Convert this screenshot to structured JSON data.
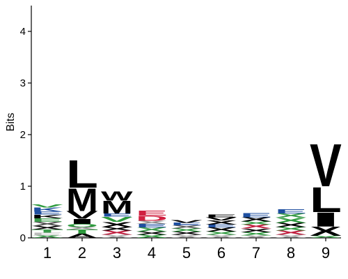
{
  "chart_data": {
    "type": "sequence-logo",
    "ylabel": "Bits",
    "ylim": [
      0,
      4.5
    ],
    "yticks": [
      0,
      1,
      2,
      3,
      4
    ],
    "positions": [
      {
        "label": "1",
        "letters": [
          {
            "char": "X",
            "bits": 0.05,
            "color": "#3a9a4a"
          },
          {
            "char": "E",
            "bits": 0.05,
            "color": "#bbbbbb"
          },
          {
            "char": "T",
            "bits": 0.06,
            "color": "#3a9a4a"
          },
          {
            "char": "X",
            "bits": 0.07,
            "color": "#000000"
          },
          {
            "char": "X",
            "bits": 0.08,
            "color": "#555555"
          },
          {
            "char": "E",
            "bits": 0.07,
            "color": "#3a9a4a"
          },
          {
            "char": "K",
            "bits": 0.07,
            "color": "#000000"
          },
          {
            "char": "E",
            "bits": 0.06,
            "color": "#1f4fa0"
          },
          {
            "char": "K",
            "bits": 0.08,
            "color": "#1f4fa0"
          },
          {
            "char": "V",
            "bits": 0.06,
            "color": "#2e9a3e"
          }
        ]
      },
      {
        "label": "2",
        "letters": [
          {
            "char": "A",
            "bits": 0.08,
            "color": "#000000"
          },
          {
            "char": "T",
            "bits": 0.08,
            "color": "#2e9a3e"
          },
          {
            "char": "X",
            "bits": 0.05,
            "color": "#888888"
          },
          {
            "char": "O",
            "bits": 0.06,
            "color": "#2e9a3e"
          },
          {
            "char": "I",
            "bits": 0.1,
            "color": "#000000"
          },
          {
            "char": "V",
            "bits": 0.15,
            "color": "#000000"
          },
          {
            "char": "M",
            "bits": 0.45,
            "color": "#000000"
          },
          {
            "char": "L",
            "bits": 0.55,
            "color": "#000000"
          }
        ]
      },
      {
        "label": "3",
        "letters": [
          {
            "char": "X",
            "bits": 0.06,
            "color": "#aaaaaa"
          },
          {
            "char": "X",
            "bits": 0.08,
            "color": "#c02040"
          },
          {
            "char": "X",
            "bits": 0.07,
            "color": "#000000"
          },
          {
            "char": "X",
            "bits": 0.1,
            "color": "#000000"
          },
          {
            "char": "V",
            "bits": 0.1,
            "color": "#2e9a3e"
          },
          {
            "char": "E",
            "bits": 0.06,
            "color": "#1f4fa0"
          },
          {
            "char": "M",
            "bits": 0.25,
            "color": "#000000"
          },
          {
            "char": "W",
            "bits": 0.18,
            "color": "#000000"
          }
        ]
      },
      {
        "label": "4",
        "letters": [
          {
            "char": "X",
            "bits": 0.06,
            "color": "#2e9a3e"
          },
          {
            "char": "X",
            "bits": 0.06,
            "color": "#000000"
          },
          {
            "char": "X",
            "bits": 0.08,
            "color": "#3a9a4a"
          },
          {
            "char": "E",
            "bits": 0.07,
            "color": "#1f4fa0"
          },
          {
            "char": "X",
            "bits": 0.06,
            "color": "#888888"
          },
          {
            "char": "D",
            "bits": 0.1,
            "color": "#d02040"
          },
          {
            "char": "E",
            "bits": 0.1,
            "color": "#d02040"
          }
        ]
      },
      {
        "label": "5",
        "letters": [
          {
            "char": "X",
            "bits": 0.06,
            "color": "#aaaaaa"
          },
          {
            "char": "X",
            "bits": 0.06,
            "color": "#000000"
          },
          {
            "char": "X",
            "bits": 0.06,
            "color": "#2e9a3e"
          },
          {
            "char": "X",
            "bits": 0.06,
            "color": "#555555"
          },
          {
            "char": "E",
            "bits": 0.05,
            "color": "#1f4fa0"
          },
          {
            "char": "V",
            "bits": 0.05,
            "color": "#000000"
          }
        ]
      },
      {
        "label": "6",
        "letters": [
          {
            "char": "X",
            "bits": 0.06,
            "color": "#aaaaaa"
          },
          {
            "char": "X",
            "bits": 0.06,
            "color": "#2e9a3e"
          },
          {
            "char": "X",
            "bits": 0.08,
            "color": "#000000"
          },
          {
            "char": "E",
            "bits": 0.06,
            "color": "#1f4fa0"
          },
          {
            "char": "X",
            "bits": 0.08,
            "color": "#000000"
          },
          {
            "char": "V",
            "bits": 0.06,
            "color": "#000000"
          },
          {
            "char": "E",
            "bits": 0.05,
            "color": "#000000"
          }
        ]
      },
      {
        "label": "7",
        "letters": [
          {
            "char": "X",
            "bits": 0.05,
            "color": "#aaaaaa"
          },
          {
            "char": "X",
            "bits": 0.06,
            "color": "#2e9a3e"
          },
          {
            "char": "X",
            "bits": 0.07,
            "color": "#000000"
          },
          {
            "char": "X",
            "bits": 0.08,
            "color": "#c02040"
          },
          {
            "char": "X",
            "bits": 0.06,
            "color": "#2e9a3e"
          },
          {
            "char": "X",
            "bits": 0.08,
            "color": "#000000"
          },
          {
            "char": "E",
            "bits": 0.08,
            "color": "#1f4fa0"
          }
        ]
      },
      {
        "label": "8",
        "letters": [
          {
            "char": "X",
            "bits": 0.06,
            "color": "#aaaaaa"
          },
          {
            "char": "X",
            "bits": 0.08,
            "color": "#c02040"
          },
          {
            "char": "X",
            "bits": 0.07,
            "color": "#2e9a3e"
          },
          {
            "char": "X",
            "bits": 0.08,
            "color": "#000000"
          },
          {
            "char": "X",
            "bits": 0.1,
            "color": "#2e9a3e"
          },
          {
            "char": "X",
            "bits": 0.08,
            "color": "#3a9a4a"
          },
          {
            "char": "E",
            "bits": 0.08,
            "color": "#1f4fa0"
          }
        ]
      },
      {
        "label": "9",
        "letters": [
          {
            "char": "X",
            "bits": 0.04,
            "color": "#2e9a3e"
          },
          {
            "char": "X",
            "bits": 0.18,
            "color": "#000000"
          },
          {
            "char": "I",
            "bits": 0.28,
            "color": "#000000"
          },
          {
            "char": "L",
            "bits": 0.5,
            "color": "#000000"
          },
          {
            "char": "V",
            "bits": 0.85,
            "color": "#000000"
          }
        ]
      }
    ]
  }
}
